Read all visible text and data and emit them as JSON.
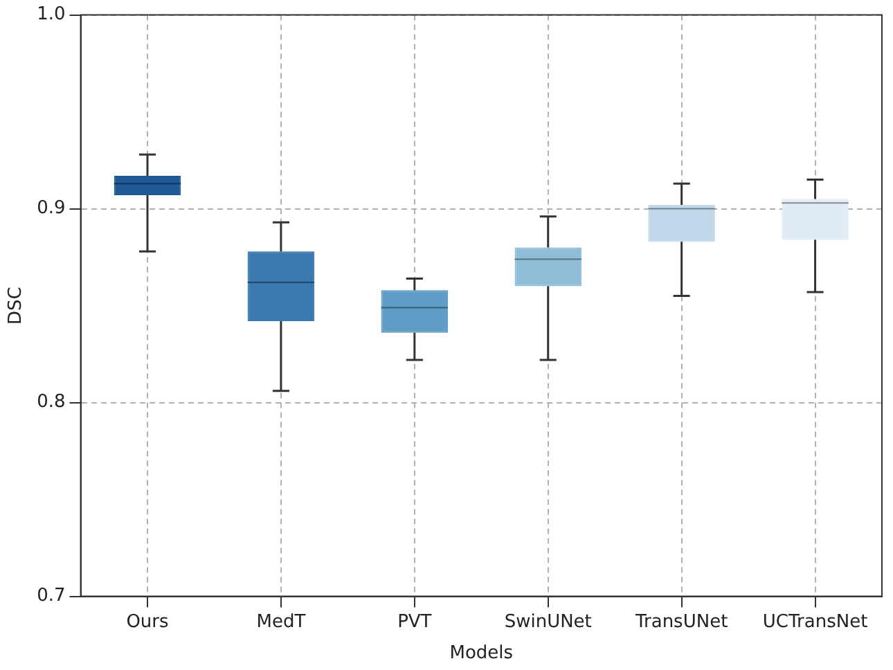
{
  "chart_data": {
    "type": "box",
    "xlabel": "Models",
    "ylabel": "DSC",
    "categories": [
      "Ours",
      "MedT",
      "PVT",
      "SwinUNet",
      "TransUNet",
      "UCTransNet"
    ],
    "colors": [
      "#1f5a96",
      "#3a79b0",
      "#5f9cc6",
      "#8fbcd6",
      "#c1d8ea",
      "#e0ebf5"
    ],
    "boxes": [
      {
        "low": 0.878,
        "q1": 0.907,
        "median": 0.913,
        "q3": 0.917,
        "high": 0.928
      },
      {
        "low": 0.806,
        "q1": 0.842,
        "median": 0.862,
        "q3": 0.878,
        "high": 0.893
      },
      {
        "low": 0.822,
        "q1": 0.836,
        "median": 0.849,
        "q3": 0.858,
        "high": 0.864
      },
      {
        "low": 0.822,
        "q1": 0.86,
        "median": 0.874,
        "q3": 0.88,
        "high": 0.896
      },
      {
        "low": 0.855,
        "q1": 0.883,
        "median": 0.9,
        "q3": 0.902,
        "high": 0.913
      },
      {
        "low": 0.857,
        "q1": 0.884,
        "median": 0.903,
        "q3": 0.905,
        "high": 0.915
      }
    ],
    "ylim": [
      0.7,
      1
    ],
    "yticks": [
      0.7,
      0.8,
      0.9,
      {
        "value": 1,
        "label": "1.0"
      }
    ],
    "grid": true,
    "legend": false
  }
}
